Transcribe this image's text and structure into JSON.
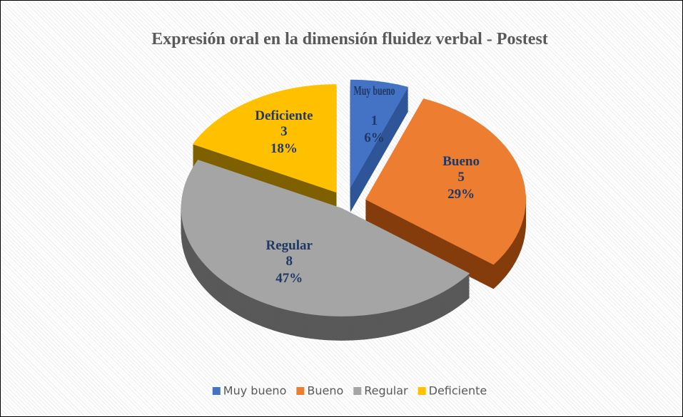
{
  "chart_data": {
    "type": "pie",
    "title": "Expresión oral en la dimensión fluidez verbal - Postest",
    "categories": [
      "Muy bueno",
      "Bueno",
      "Regular",
      "Deficiente"
    ],
    "values": [
      1,
      5,
      8,
      3
    ],
    "percent_labels": [
      "6%",
      "29%",
      "47%",
      "18%"
    ],
    "colors": [
      "#4472c4",
      "#ed7d31",
      "#a5a5a5",
      "#ffc000"
    ],
    "side_colors": [
      "#2f5597",
      "#843c0c",
      "#595959",
      "#7f6000"
    ],
    "legend": "bottom"
  }
}
